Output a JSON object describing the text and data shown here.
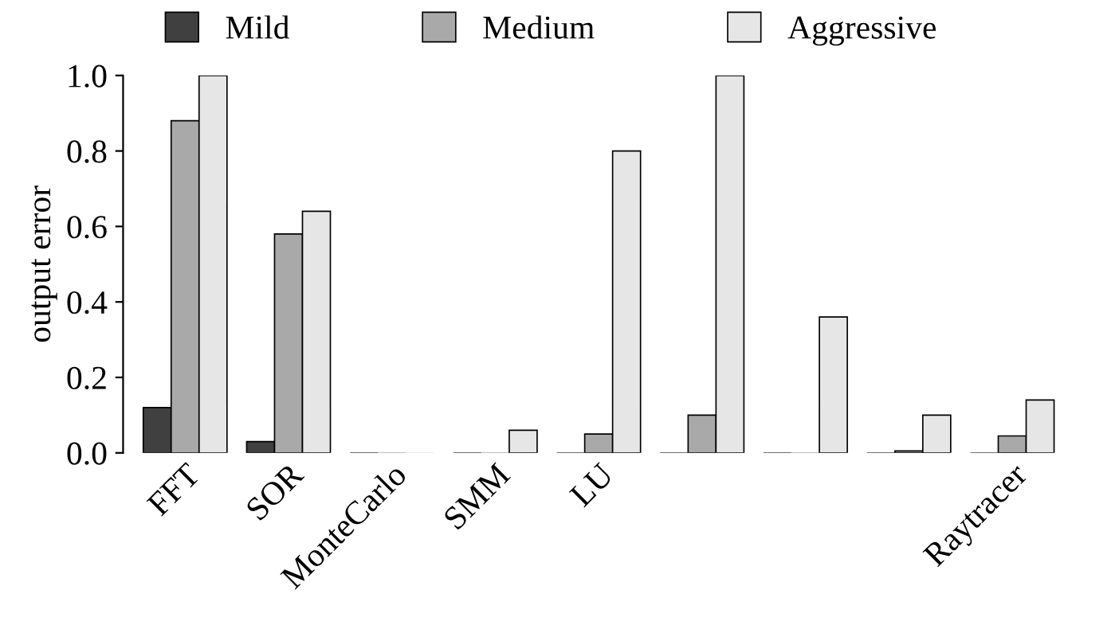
{
  "chart_data": {
    "type": "bar",
    "ylabel": "output error",
    "categories": [
      "FFT",
      "SOR",
      "MonteCarlo",
      "SMM",
      "LU",
      null,
      null,
      null,
      "Raytracer"
    ],
    "series": [
      {
        "name": "Mild",
        "color": "#404040",
        "values": [
          0.12,
          0.03,
          0,
          0,
          0,
          0,
          0,
          0,
          0
        ]
      },
      {
        "name": "Medium",
        "color": "#a9a9a9",
        "values": [
          0.88,
          0.58,
          0,
          0,
          0.05,
          0.1,
          0,
          0.005,
          0.045
        ]
      },
      {
        "name": "Aggressive",
        "color": "#e6e6e6",
        "values": [
          1.0,
          0.64,
          0,
          0.06,
          0.8,
          1.0,
          0.36,
          0.1,
          0.14
        ]
      }
    ],
    "ylim": [
      0,
      1.0
    ],
    "yticks": [
      {
        "value": 0,
        "label": "0.0"
      },
      {
        "value": 0.2,
        "label": "0.2"
      },
      {
        "value": 0.4,
        "label": "0.4"
      },
      {
        "value": 0.6,
        "label": "0.6"
      },
      {
        "value": 0.8,
        "label": "0.8"
      },
      {
        "value": 1.0,
        "label": "1.0"
      }
    ],
    "legend": "top",
    "grid": false
  }
}
